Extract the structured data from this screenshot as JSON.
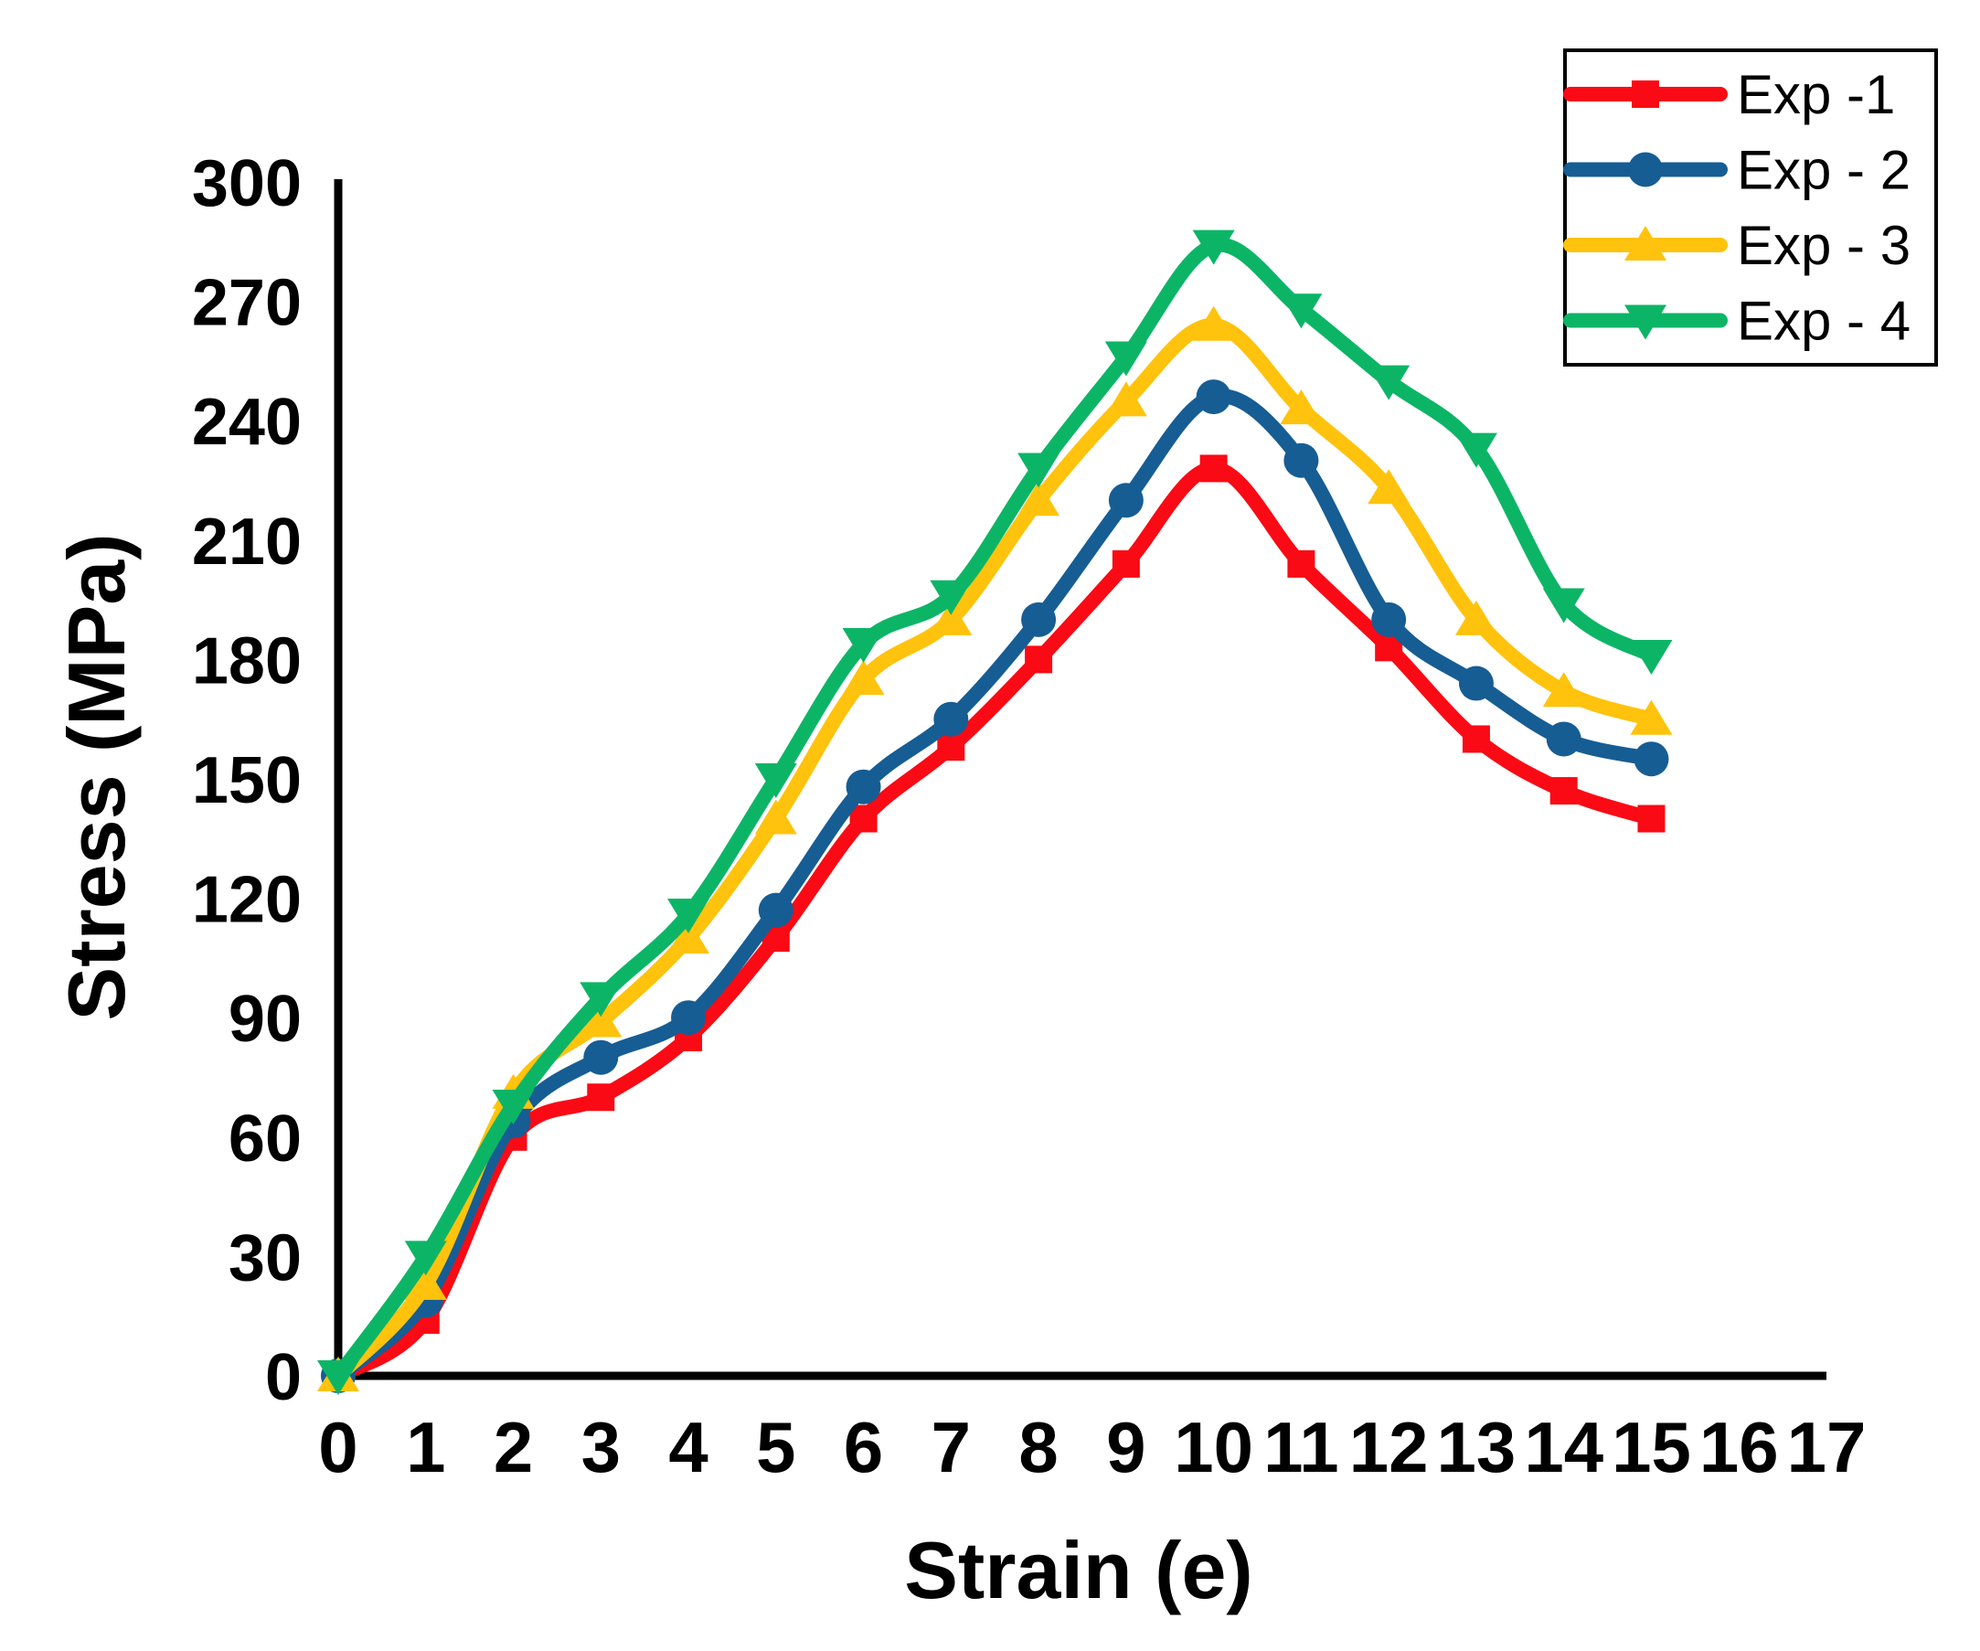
{
  "chart_data": {
    "type": "line",
    "title": "",
    "xlabel": "Strain (e)",
    "ylabel": "Stress (MPa)",
    "xlim": [
      0,
      17
    ],
    "ylim": [
      0,
      300
    ],
    "x_ticks": [
      0,
      1,
      2,
      3,
      4,
      5,
      6,
      7,
      8,
      9,
      10,
      11,
      12,
      13,
      14,
      15,
      16,
      17
    ],
    "y_ticks": [
      0,
      30,
      60,
      90,
      120,
      150,
      180,
      210,
      240,
      270,
      300
    ],
    "grid": false,
    "legend_position": "top-right",
    "axis_color": "#000000",
    "background_color": "#FFFFFF",
    "x": [
      0,
      1,
      2,
      3,
      4,
      5,
      6,
      7,
      8,
      9,
      10,
      11,
      12,
      13,
      14,
      15
    ],
    "series": [
      {
        "name": "Exp -1",
        "color": "#FA0A14",
        "marker": "square",
        "values": [
          0,
          14,
          60,
          70,
          85,
          110,
          140,
          158,
          180,
          204,
          228,
          204,
          183,
          160,
          147,
          140
        ]
      },
      {
        "name": "Exp - 2",
        "color": "#165D94",
        "marker": "circle",
        "values": [
          0,
          19,
          64,
          80,
          90,
          117,
          148,
          165,
          190,
          220,
          246,
          230,
          190,
          174,
          160,
          155
        ]
      },
      {
        "name": "Exp - 3",
        "color": "#FFC30D",
        "marker": "triangle-up",
        "values": [
          0,
          23,
          71,
          89,
          110,
          140,
          175,
          190,
          220,
          245,
          264,
          243,
          223,
          190,
          172,
          165
        ]
      },
      {
        "name": "Exp - 4",
        "color": "#0CB566",
        "marker": "triangle-down",
        "values": [
          0,
          30,
          68,
          95,
          116,
          150,
          184,
          196,
          228,
          256,
          284,
          268,
          250,
          233,
          194,
          181
        ]
      }
    ]
  }
}
